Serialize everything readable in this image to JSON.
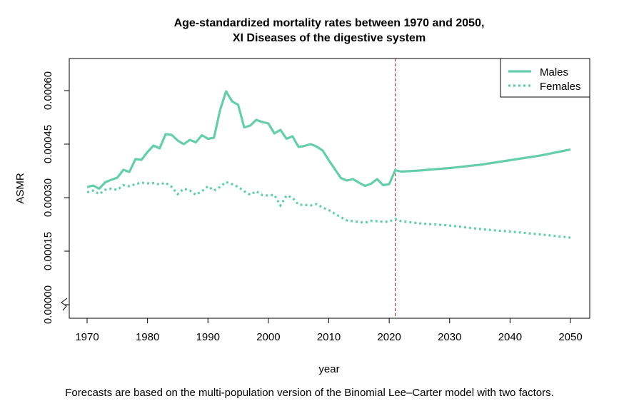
{
  "chart_data": {
    "type": "line",
    "title_line1": "Age-standardized mortality rates between 1970 and 2050,",
    "title_line2": "XI Diseases of the digestive system",
    "xlabel": "year",
    "ylabel": "ASMR",
    "xlim": [
      1966,
      2053
    ],
    "ylim": [
      0.0,
      0.00066
    ],
    "x_ticks": [
      1970,
      1980,
      1990,
      2000,
      2010,
      2020,
      2030,
      2040,
      2050
    ],
    "y_ticks": [
      0.0,
      0.00015,
      0.0003,
      0.00045,
      0.0006
    ],
    "y_tick_labels": [
      "0.00000",
      "0.00015",
      "0.00030",
      "0.00045",
      "0.00060"
    ],
    "forecast_start": 2021,
    "forecast_line_color": "#8b1a1a",
    "legend_position": "top-right",
    "series": [
      {
        "name": "Males",
        "style": "solid",
        "color": "#66cdaa",
        "x": [
          1970,
          1971,
          1972,
          1973,
          1974,
          1975,
          1976,
          1977,
          1978,
          1979,
          1980,
          1981,
          1982,
          1983,
          1984,
          1985,
          1986,
          1987,
          1988,
          1989,
          1990,
          1991,
          1992,
          1993,
          1994,
          1995,
          1996,
          1997,
          1998,
          1999,
          2000,
          2001,
          2002,
          2003,
          2004,
          2005,
          2006,
          2007,
          2008,
          2009,
          2010,
          2011,
          2012,
          2013,
          2014,
          2015,
          2016,
          2017,
          2018,
          2019,
          2020,
          2021,
          2022,
          2025,
          2030,
          2035,
          2040,
          2045,
          2050
        ],
        "values": [
          0.00033,
          0.000334,
          0.000325,
          0.000343,
          0.00035,
          0.000356,
          0.000378,
          0.000372,
          0.000408,
          0.000406,
          0.000428,
          0.000446,
          0.000438,
          0.000478,
          0.000476,
          0.00046,
          0.00045,
          0.000462,
          0.000455,
          0.000475,
          0.000465,
          0.000468,
          0.000545,
          0.000598,
          0.00057,
          0.00056,
          0.000497,
          0.000502,
          0.000518,
          0.000512,
          0.000508,
          0.00048,
          0.00049,
          0.000465,
          0.000472,
          0.000442,
          0.000445,
          0.00045,
          0.000443,
          0.000432,
          0.000405,
          0.00038,
          0.000355,
          0.000348,
          0.000352,
          0.000342,
          0.000333,
          0.000339,
          0.000352,
          0.000335,
          0.000338,
          0.000377,
          0.000373,
          0.000376,
          0.000383,
          0.000392,
          0.000405,
          0.000418,
          0.000435
        ]
      },
      {
        "name": "Females",
        "style": "dotted",
        "color": "#66cdaa",
        "x": [
          1970,
          1971,
          1972,
          1973,
          1974,
          1975,
          1976,
          1977,
          1978,
          1979,
          1980,
          1981,
          1982,
          1983,
          1984,
          1985,
          1986,
          1987,
          1988,
          1989,
          1990,
          1991,
          1992,
          1993,
          1994,
          1995,
          1996,
          1997,
          1998,
          1999,
          2000,
          2001,
          2002,
          2003,
          2004,
          2005,
          2006,
          2007,
          2008,
          2009,
          2010,
          2011,
          2012,
          2013,
          2014,
          2015,
          2016,
          2017,
          2018,
          2019,
          2020,
          2021,
          2022,
          2025,
          2030,
          2035,
          2040,
          2045,
          2050
        ],
        "values": [
          0.000315,
          0.00032,
          0.00031,
          0.000322,
          0.000325,
          0.000322,
          0.000335,
          0.000332,
          0.000338,
          0.000342,
          0.00034,
          0.000341,
          0.000337,
          0.000342,
          0.00033,
          0.00031,
          0.000325,
          0.00032,
          0.000308,
          0.000318,
          0.000332,
          0.00032,
          0.00033,
          0.000344,
          0.000338,
          0.00033,
          0.000318,
          0.000308,
          0.000318,
          0.000307,
          0.000306,
          0.000308,
          0.000278,
          0.000306,
          0.0003,
          0.00028,
          0.00028,
          0.000278,
          0.000282,
          0.000272,
          0.000265,
          0.000255,
          0.000245,
          0.000236,
          0.000234,
          0.000232,
          0.00023,
          0.000235,
          0.000234,
          0.000232,
          0.000233,
          0.00024,
          0.000234,
          0.000228,
          0.000222,
          0.000212,
          0.000205,
          0.000197,
          0.000188
        ]
      }
    ]
  },
  "caption": "Forecasts are based on the multi-population version of the Binomial Lee–Carter model with two factors."
}
